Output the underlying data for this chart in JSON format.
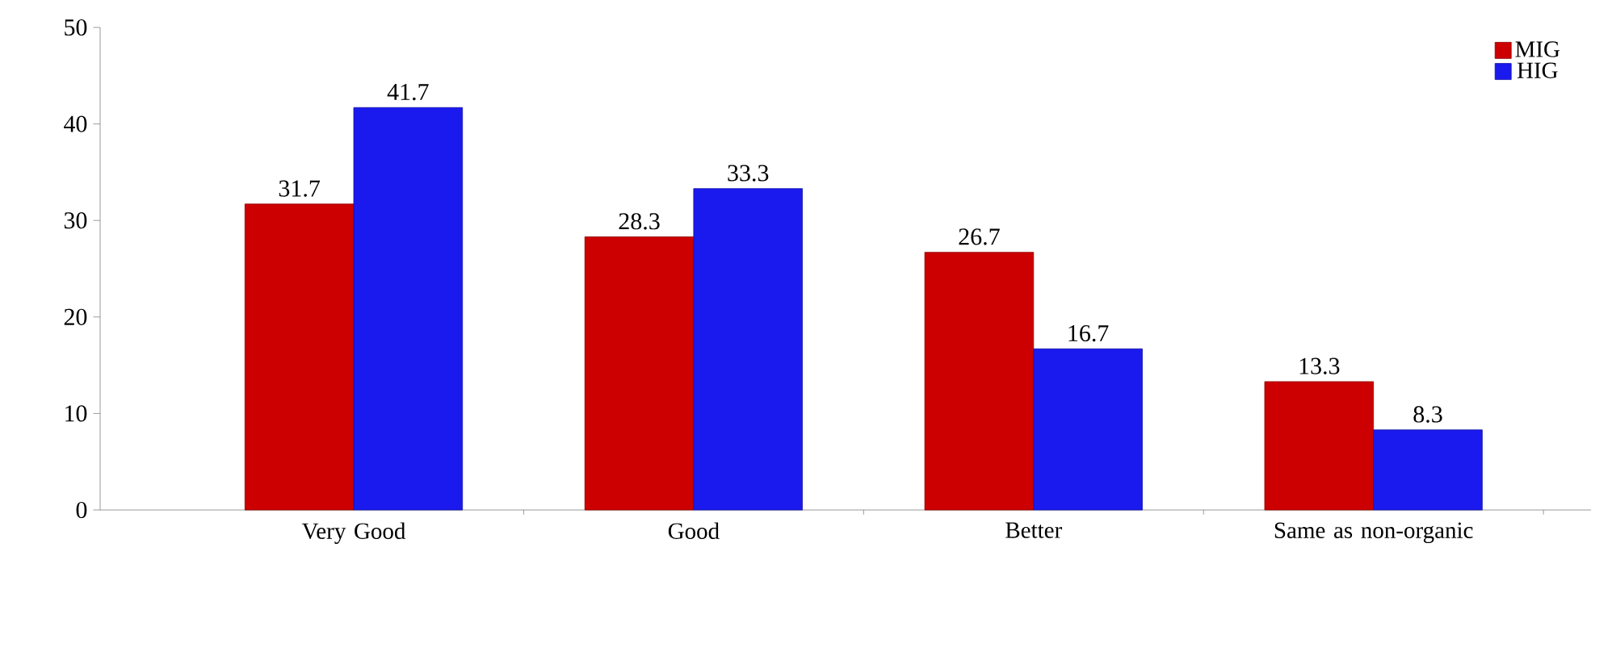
{
  "chart_data": {
    "type": "bar",
    "categories": [
      "Very Good",
      "Good",
      "Better",
      "Same as non-organic"
    ],
    "series": [
      {
        "name": "MIG",
        "color": "#cc0000",
        "values": [
          31.7,
          28.3,
          26.7,
          13.3
        ]
      },
      {
        "name": "HIG",
        "color": "#1a1aee",
        "values": [
          41.7,
          33.3,
          16.7,
          8.3
        ]
      }
    ],
    "ylim": [
      0,
      50
    ],
    "yticks": [
      0,
      10,
      20,
      30,
      40,
      50
    ],
    "grid": false,
    "legend": "top right",
    "data_labels": true
  }
}
